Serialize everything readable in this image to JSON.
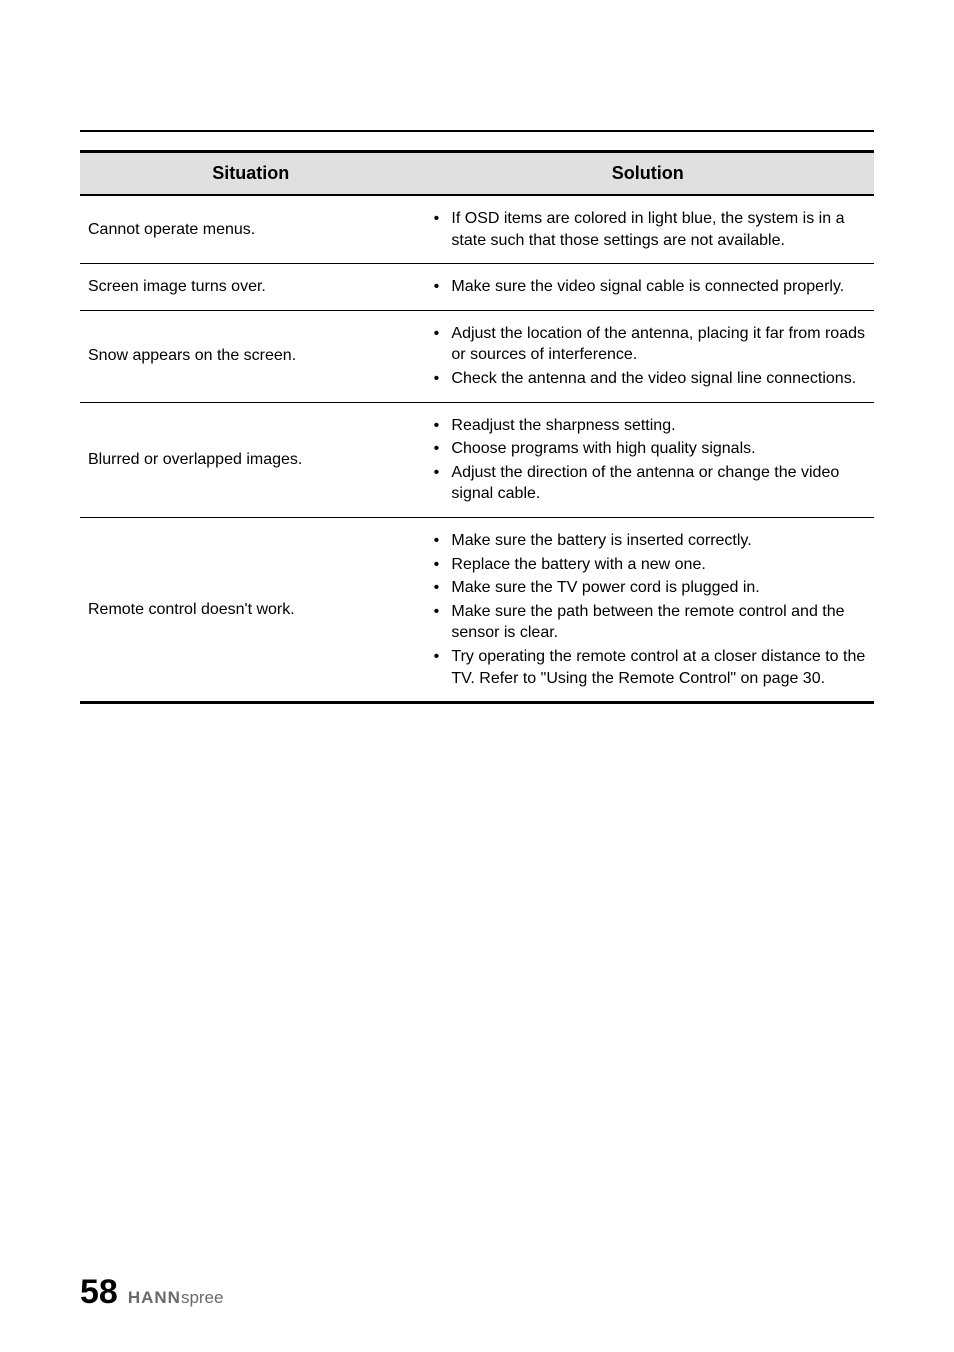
{
  "table": {
    "headers": {
      "situation": "Situation",
      "solution": "Solution"
    },
    "rows": [
      {
        "situation": "Cannot operate menus.",
        "solutions": [
          "If OSD items are colored in light blue, the system is in a state such that those settings are not available."
        ]
      },
      {
        "situation": "Screen image turns over.",
        "solutions": [
          "Make sure the video signal cable is connected properly."
        ]
      },
      {
        "situation": "Snow appears on the screen.",
        "solutions": [
          "Adjust the location of the antenna, placing it far from roads or sources of interference.",
          "Check the antenna and the video signal line connections."
        ]
      },
      {
        "situation": "Blurred or overlapped images.",
        "solutions": [
          "Readjust the sharpness setting.",
          "Choose programs with high quality signals.",
          "Adjust the direction of the antenna or change the video signal cable."
        ]
      },
      {
        "situation": "Remote control doesn't work.",
        "solutions": [
          "Make sure the battery is inserted correctly.",
          "Replace the battery with a new one.",
          "Make sure the TV power cord is plugged in.",
          "Make sure the path between the remote control and the sensor is clear.",
          "Try operating the remote control at a closer distance to the TV. Refer to \"Using the Remote Control\" on page 30."
        ]
      }
    ]
  },
  "footer": {
    "page_number": "58",
    "brand_prefix": "HANN",
    "brand_suffix": "spree"
  }
}
